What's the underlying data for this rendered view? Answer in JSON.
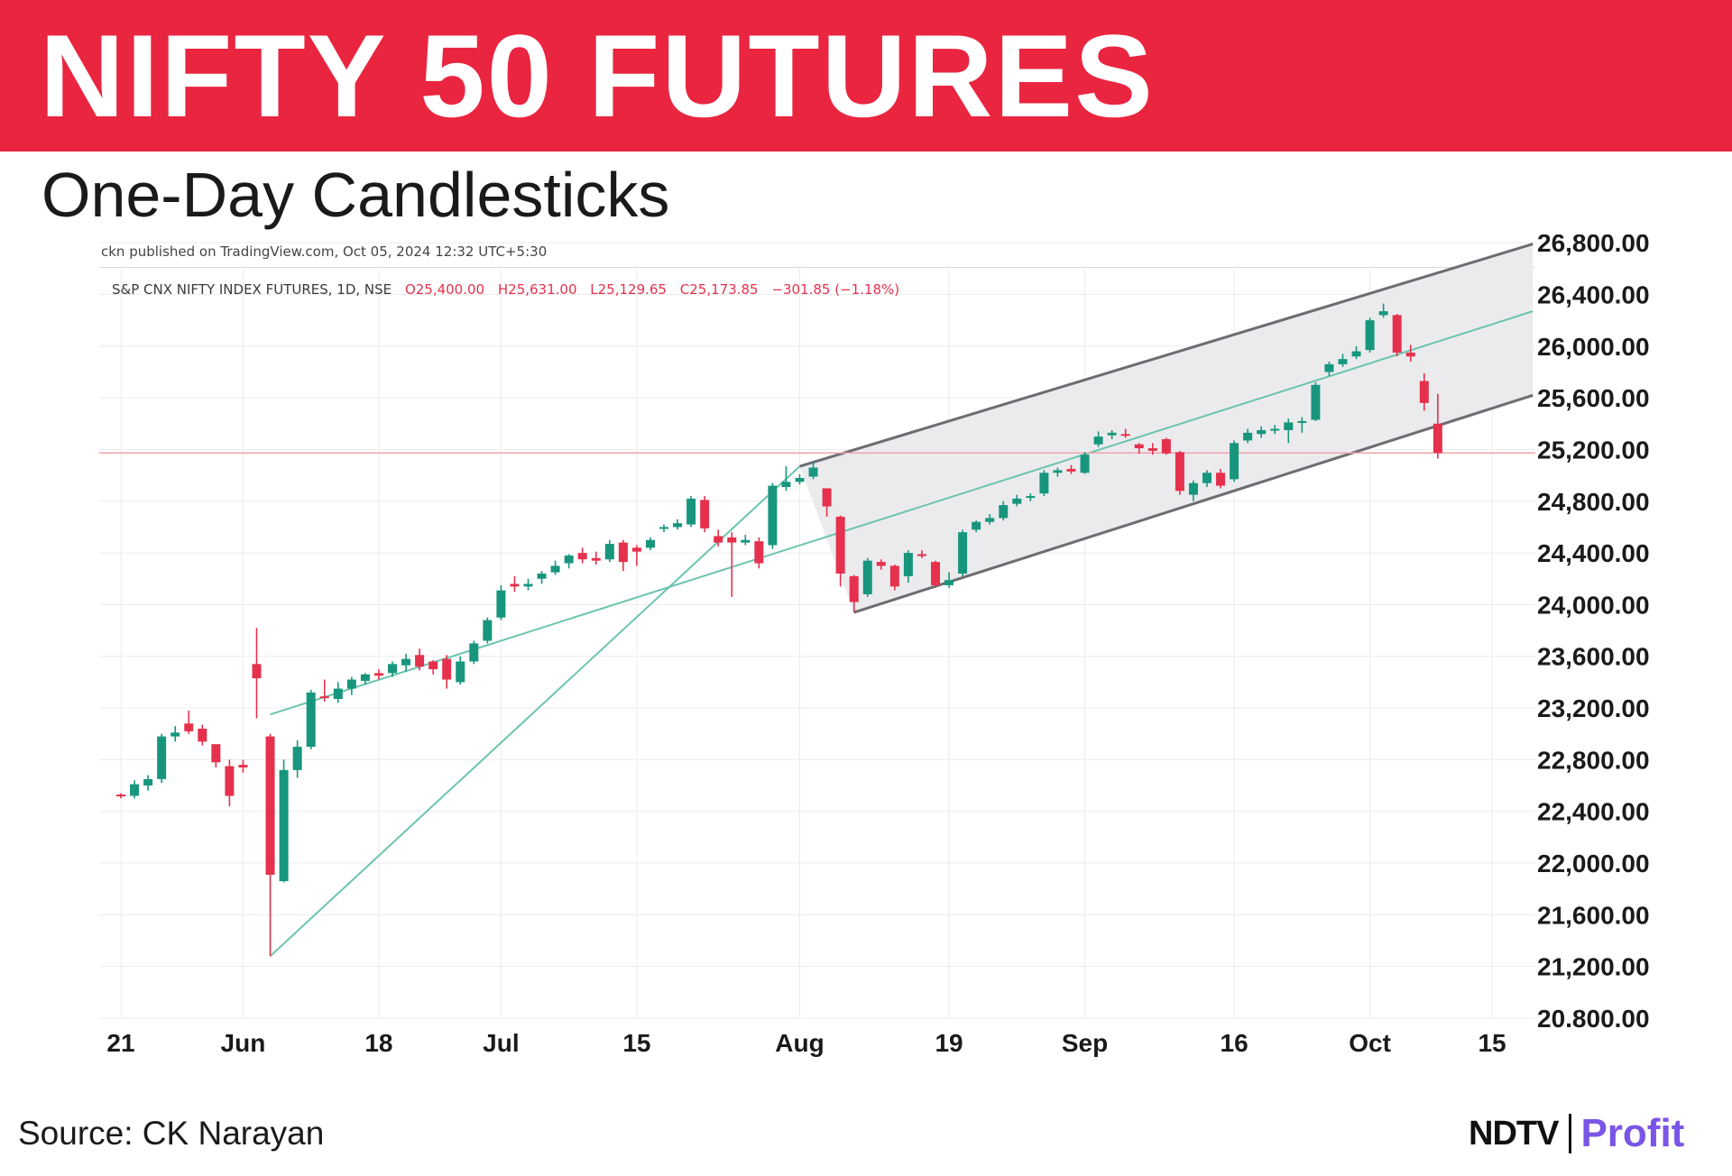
{
  "header": {
    "title": "NIFTY 50 FUTURES",
    "subtitle": "One-Day Candlesticks"
  },
  "colors": {
    "banner": "#ea2540",
    "up_candle": "#17967d",
    "down_candle": "#e5314d",
    "channel_line": "#6c6c72",
    "trend_line": "#6cc4ae",
    "price_line": "#f2a3a9",
    "channel_fill": "#ebebee",
    "logo_profit": "#7a55e8"
  },
  "footer": {
    "source": "Source:  CK Narayan",
    "logo_brand": "NDTV",
    "logo_product": "Profit"
  },
  "chart_data": {
    "type": "candlestick",
    "published_text": "ckn published on TradingView.com, Oct 05, 2024 12:32 UTC+5:30",
    "symbol_name": "S&P CNX NIFTY INDEX FUTURES, 1D, NSE",
    "ohlc_text": {
      "open": "O25,400.00",
      "high": "H25,631.00",
      "low": "L25,129.65",
      "close": "C25,173.85",
      "change": "−301.85 (−1.18%)"
    },
    "last_price": 25173.85,
    "ylim": [
      20800,
      26850
    ],
    "y_ticks": [
      {
        "value": 26800,
        "label": "26,800.00"
      },
      {
        "value": 26400,
        "label": "26,400.00"
      },
      {
        "value": 26000,
        "label": "26,000.00"
      },
      {
        "value": 25600,
        "label": "25,600.00"
      },
      {
        "value": 25200,
        "label": "25,200.00"
      },
      {
        "value": 24800,
        "label": "24,800.00"
      },
      {
        "value": 24400,
        "label": "24,400.00"
      },
      {
        "value": 24000,
        "label": "24,000.00"
      },
      {
        "value": 23600,
        "label": "23,600.00"
      },
      {
        "value": 23200,
        "label": "23,200.00"
      },
      {
        "value": 22800,
        "label": "22,800.00"
      },
      {
        "value": 22400,
        "label": "22,400.00"
      },
      {
        "value": 22000,
        "label": "22,000.00"
      },
      {
        "value": 21600,
        "label": "21,600.00"
      },
      {
        "value": 21200,
        "label": "21,200.00"
      },
      {
        "value": 20800,
        "label": "20.800.00"
      }
    ],
    "x_ticks": [
      {
        "index": 0,
        "label": "21"
      },
      {
        "index": 9,
        "label": "Jun"
      },
      {
        "index": 19,
        "label": "18"
      },
      {
        "index": 28,
        "label": "Jul"
      },
      {
        "index": 38,
        "label": "15"
      },
      {
        "index": 50,
        "label": "Aug"
      },
      {
        "index": 61,
        "label": "19"
      },
      {
        "index": 71,
        "label": "Sep"
      },
      {
        "index": 82,
        "label": "16"
      },
      {
        "index": 92,
        "label": "Oct"
      },
      {
        "index": 101,
        "label": "15"
      }
    ],
    "candles": [
      [
        0,
        22530,
        22540,
        22500,
        22525
      ],
      [
        1,
        22520,
        22640,
        22500,
        22610
      ],
      [
        2,
        22600,
        22680,
        22560,
        22650
      ],
      [
        3,
        22650,
        23000,
        22620,
        22980
      ],
      [
        4,
        22980,
        23060,
        22940,
        23010
      ],
      [
        5,
        23080,
        23180,
        23000,
        23020
      ],
      [
        6,
        23040,
        23070,
        22910,
        22940
      ],
      [
        7,
        22920,
        22920,
        22740,
        22780
      ],
      [
        8,
        22750,
        22800,
        22440,
        22520
      ],
      [
        9,
        22760,
        22800,
        22700,
        22740
      ],
      [
        10,
        23540,
        23820,
        23120,
        23430
      ],
      [
        11,
        22980,
        23000,
        21280,
        21910
      ],
      [
        12,
        21860,
        22800,
        21850,
        22720
      ],
      [
        13,
        22720,
        22950,
        22660,
        22900
      ],
      [
        14,
        22900,
        23340,
        22880,
        23320
      ],
      [
        15,
        23290,
        23420,
        23250,
        23280
      ],
      [
        16,
        23270,
        23400,
        23240,
        23350
      ],
      [
        17,
        23350,
        23440,
        23300,
        23420
      ],
      [
        18,
        23410,
        23470,
        23380,
        23460
      ],
      [
        19,
        23470,
        23500,
        23420,
        23450
      ],
      [
        20,
        23470,
        23560,
        23440,
        23540
      ],
      [
        21,
        23530,
        23620,
        23480,
        23580
      ],
      [
        22,
        23610,
        23660,
        23490,
        23520
      ],
      [
        23,
        23560,
        23570,
        23460,
        23500
      ],
      [
        24,
        23580,
        23610,
        23350,
        23420
      ],
      [
        25,
        23400,
        23600,
        23380,
        23560
      ],
      [
        26,
        23560,
        23720,
        23540,
        23700
      ],
      [
        27,
        23720,
        23900,
        23700,
        23880
      ],
      [
        28,
        23900,
        24150,
        23880,
        24110
      ],
      [
        29,
        24160,
        24220,
        24100,
        24140
      ],
      [
        30,
        24140,
        24200,
        24110,
        24160
      ],
      [
        31,
        24200,
        24260,
        24160,
        24240
      ],
      [
        32,
        24250,
        24340,
        24230,
        24300
      ],
      [
        33,
        24320,
        24390,
        24280,
        24380
      ],
      [
        34,
        24400,
        24440,
        24320,
        24350
      ],
      [
        35,
        24360,
        24410,
        24310,
        24340
      ],
      [
        36,
        24350,
        24500,
        24330,
        24470
      ],
      [
        37,
        24480,
        24500,
        24260,
        24330
      ],
      [
        38,
        24440,
        24460,
        24300,
        24410
      ],
      [
        39,
        24440,
        24520,
        24420,
        24500
      ],
      [
        40,
        24590,
        24620,
        24560,
        24600
      ],
      [
        41,
        24600,
        24660,
        24580,
        24630
      ],
      [
        42,
        24620,
        24840,
        24600,
        24820
      ],
      [
        43,
        24810,
        24840,
        24560,
        24590
      ],
      [
        44,
        24530,
        24580,
        24450,
        24480
      ],
      [
        45,
        24520,
        24560,
        24060,
        24480
      ],
      [
        46,
        24480,
        24540,
        24460,
        24500
      ],
      [
        47,
        24490,
        24520,
        24280,
        24320
      ],
      [
        48,
        24460,
        24940,
        24430,
        24920
      ],
      [
        49,
        24910,
        25070,
        24880,
        24950
      ],
      [
        50,
        24950,
        25010,
        24930,
        24980
      ],
      [
        51,
        24990,
        25100,
        24970,
        25060
      ],
      [
        52,
        24900,
        24900,
        24680,
        24760
      ],
      [
        53,
        24680,
        24690,
        24140,
        24240
      ],
      [
        54,
        24220,
        24230,
        23940,
        24020
      ],
      [
        55,
        24080,
        24360,
        24060,
        24340
      ],
      [
        56,
        24330,
        24350,
        24270,
        24300
      ],
      [
        57,
        24300,
        24310,
        24110,
        24140
      ],
      [
        58,
        24220,
        24420,
        24170,
        24400
      ],
      [
        59,
        24390,
        24420,
        24360,
        24380
      ],
      [
        60,
        24330,
        24340,
        24130,
        24150
      ],
      [
        61,
        24150,
        24250,
        24130,
        24190
      ],
      [
        62,
        24240,
        24580,
        24220,
        24560
      ],
      [
        63,
        24580,
        24650,
        24560,
        24640
      ],
      [
        64,
        24640,
        24700,
        24620,
        24670
      ],
      [
        65,
        24670,
        24800,
        24650,
        24770
      ],
      [
        66,
        24780,
        24850,
        24760,
        24820
      ],
      [
        67,
        24830,
        24860,
        24800,
        24840
      ],
      [
        68,
        24860,
        25040,
        24840,
        25020
      ],
      [
        69,
        25020,
        25060,
        24990,
        25040
      ],
      [
        70,
        25050,
        25080,
        25010,
        25030
      ],
      [
        71,
        25020,
        25180,
        25010,
        25160
      ],
      [
        72,
        25240,
        25340,
        25220,
        25300
      ],
      [
        73,
        25310,
        25350,
        25280,
        25330
      ],
      [
        74,
        25320,
        25360,
        25290,
        25310
      ],
      [
        75,
        25240,
        25250,
        25170,
        25210
      ],
      [
        76,
        25210,
        25250,
        25160,
        25190
      ],
      [
        77,
        25280,
        25290,
        25160,
        25170
      ],
      [
        78,
        25180,
        25190,
        24850,
        24880
      ],
      [
        79,
        24850,
        24960,
        24800,
        24940
      ],
      [
        80,
        24940,
        25040,
        24910,
        25020
      ],
      [
        81,
        25020,
        25050,
        24900,
        24920
      ],
      [
        82,
        24970,
        25270,
        24950,
        25250
      ],
      [
        83,
        25270,
        25360,
        25250,
        25330
      ],
      [
        84,
        25320,
        25380,
        25290,
        25350
      ],
      [
        85,
        25360,
        25390,
        25320,
        25360
      ],
      [
        86,
        25350,
        25440,
        25250,
        25410
      ],
      [
        87,
        25410,
        25450,
        25330,
        25420
      ],
      [
        88,
        25430,
        25720,
        25420,
        25700
      ],
      [
        89,
        25800,
        25880,
        25770,
        25860
      ],
      [
        90,
        25860,
        25940,
        25840,
        25900
      ],
      [
        91,
        25920,
        26000,
        25900,
        25960
      ],
      [
        92,
        25970,
        26220,
        25950,
        26200
      ],
      [
        93,
        26240,
        26330,
        26220,
        26270
      ],
      [
        94,
        26240,
        26250,
        25920,
        25950
      ],
      [
        95,
        25950,
        26010,
        25880,
        25920
      ],
      [
        96,
        25730,
        25790,
        25500,
        25560
      ],
      [
        97,
        25400,
        25631,
        25129.65,
        25173.85
      ]
    ],
    "trend_lines": [
      {
        "name": "channel-upper",
        "from": [
          50,
          25070
        ],
        "to": [
          104,
          26790
        ]
      },
      {
        "name": "channel-lower",
        "from": [
          54,
          23940
        ],
        "to": [
          104,
          25620
        ]
      },
      {
        "name": "midline",
        "from": [
          11,
          23150
        ],
        "to": [
          104,
          26270
        ]
      },
      {
        "name": "rising-support",
        "from": [
          11,
          21280
        ],
        "to": [
          50,
          25070
        ]
      }
    ],
    "channel_shaded_between": [
      "channel-upper",
      "channel-lower"
    ]
  }
}
